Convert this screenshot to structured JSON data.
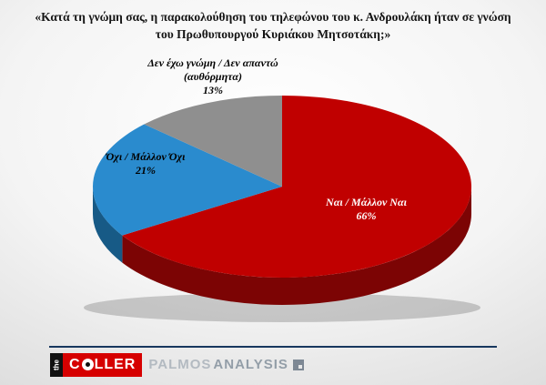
{
  "slide": {
    "title": "«Κατά τη γνώμη σας, η παρακολούθηση του τηλεφώνου του κ. Ανδρουλάκη ήταν σε γνώση του Πρωθυπουργού Κυριάκου Μητσοτάκη;»"
  },
  "chart_data": {
    "type": "pie",
    "title": "«Κατά τη γνώμη σας, η παρακολούθηση του τηλεφώνου του κ. Ανδρουλάκη ήταν σε γνώση του Πρωθυπουργού Κυριάκου Μητσοτάκη;»",
    "start_angle_deg": -90,
    "direction": "clockwise",
    "style": "3d-pie",
    "slices": [
      {
        "label": "Ναι / Μάλλον Ναι",
        "value": 66,
        "pct_label": "66%",
        "color": "#c00000",
        "side_color": "#7c0404",
        "text_color": "#ffffff"
      },
      {
        "label": "Όχι / Μάλλον Όχι",
        "value": 21,
        "pct_label": "21%",
        "color": "#2a8bce",
        "side_color": "#175a86",
        "text_color": "#000000"
      },
      {
        "label": "Δεν έχω γνώμη / Δεν απαντώ (αυθόρμητα)",
        "value": 13,
        "pct_label": "13%",
        "color": "#8f8f8f",
        "side_color": "#5d5d5d",
        "text_color": "#000000"
      }
    ]
  },
  "footer": {
    "caller_logo": {
      "the": "the",
      "name_start": "C",
      "name_end": "LLER"
    },
    "palmos_logo": {
      "palmos": "PALMOS",
      "analysis": "ANALYSIS"
    }
  }
}
